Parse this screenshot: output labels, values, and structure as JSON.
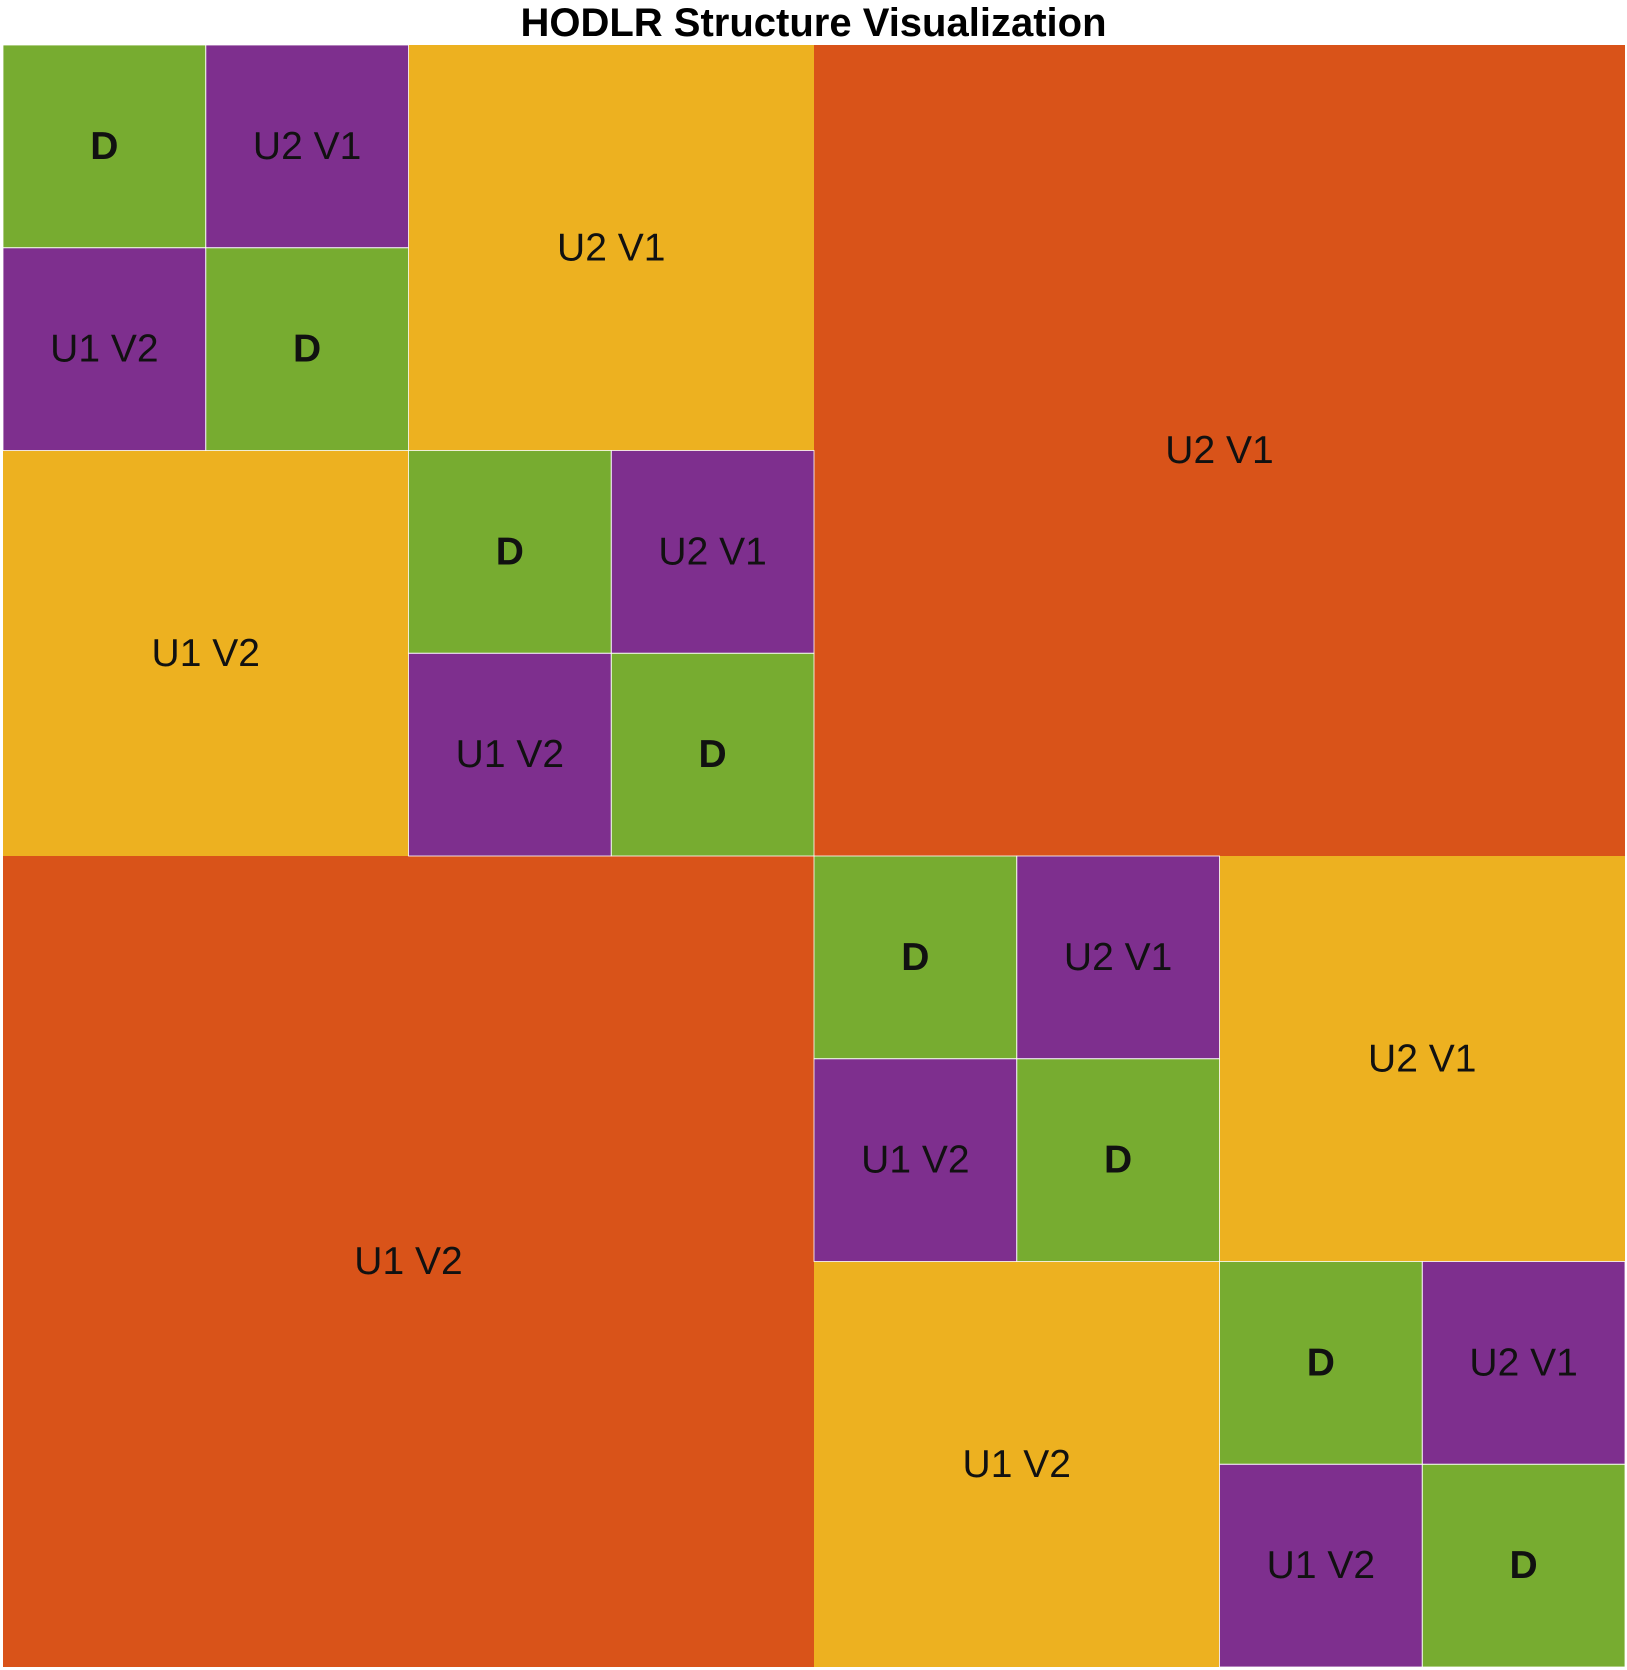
{
  "title": "HODLR Structure Visualization",
  "colors": {
    "dense": "#77AC30",
    "level3": "#7E2F8E",
    "level2": "#EDB120",
    "level1": "#D95319"
  },
  "matrix": {
    "size": 16,
    "levels": 3
  },
  "blocks": [
    {
      "id": "L1-upper",
      "row": 0,
      "col": 8,
      "rows": 8,
      "cols": 8,
      "kind": "level1",
      "label": "U2 V1"
    },
    {
      "id": "L1-lower",
      "row": 8,
      "col": 0,
      "rows": 8,
      "cols": 8,
      "kind": "level1",
      "label": "U1 V2"
    },
    {
      "id": "L2-a-upper",
      "row": 0,
      "col": 4,
      "rows": 4,
      "cols": 4,
      "kind": "level2",
      "label": "U2 V1"
    },
    {
      "id": "L2-a-lower",
      "row": 4,
      "col": 0,
      "rows": 4,
      "cols": 4,
      "kind": "level2",
      "label": "U1 V2"
    },
    {
      "id": "L2-b-upper",
      "row": 8,
      "col": 12,
      "rows": 4,
      "cols": 4,
      "kind": "level2",
      "label": "U2 V1"
    },
    {
      "id": "L2-b-lower",
      "row": 12,
      "col": 8,
      "rows": 4,
      "cols": 4,
      "kind": "level2",
      "label": "U1 V2"
    },
    {
      "id": "L3-1-dense-a",
      "row": 0,
      "col": 0,
      "rows": 2,
      "cols": 2,
      "kind": "dense",
      "label": "D"
    },
    {
      "id": "L3-1-upper",
      "row": 0,
      "col": 2,
      "rows": 2,
      "cols": 2,
      "kind": "level3",
      "label": "U2 V1"
    },
    {
      "id": "L3-1-lower",
      "row": 2,
      "col": 0,
      "rows": 2,
      "cols": 2,
      "kind": "level3",
      "label": "U1 V2"
    },
    {
      "id": "L3-1-dense-b",
      "row": 2,
      "col": 2,
      "rows": 2,
      "cols": 2,
      "kind": "dense",
      "label": "D"
    },
    {
      "id": "L3-2-dense-a",
      "row": 4,
      "col": 4,
      "rows": 2,
      "cols": 2,
      "kind": "dense",
      "label": "D"
    },
    {
      "id": "L3-2-upper",
      "row": 4,
      "col": 6,
      "rows": 2,
      "cols": 2,
      "kind": "level3",
      "label": "U2 V1"
    },
    {
      "id": "L3-2-lower",
      "row": 6,
      "col": 4,
      "rows": 2,
      "cols": 2,
      "kind": "level3",
      "label": "U1 V2"
    },
    {
      "id": "L3-2-dense-b",
      "row": 6,
      "col": 6,
      "rows": 2,
      "cols": 2,
      "kind": "dense",
      "label": "D"
    },
    {
      "id": "L3-3-dense-a",
      "row": 8,
      "col": 8,
      "rows": 2,
      "cols": 2,
      "kind": "dense",
      "label": "D"
    },
    {
      "id": "L3-3-upper",
      "row": 8,
      "col": 10,
      "rows": 2,
      "cols": 2,
      "kind": "level3",
      "label": "U2 V1"
    },
    {
      "id": "L3-3-lower",
      "row": 10,
      "col": 8,
      "rows": 2,
      "cols": 2,
      "kind": "level3",
      "label": "U1 V2"
    },
    {
      "id": "L3-3-dense-b",
      "row": 10,
      "col": 10,
      "rows": 2,
      "cols": 2,
      "kind": "dense",
      "label": "D"
    },
    {
      "id": "L3-4-dense-a",
      "row": 12,
      "col": 12,
      "rows": 2,
      "cols": 2,
      "kind": "dense",
      "label": "D"
    },
    {
      "id": "L3-4-upper",
      "row": 12,
      "col": 14,
      "rows": 2,
      "cols": 2,
      "kind": "level3",
      "label": "U2 V1"
    },
    {
      "id": "L3-4-lower",
      "row": 14,
      "col": 12,
      "rows": 2,
      "cols": 2,
      "kind": "level3",
      "label": "U1 V2"
    },
    {
      "id": "L3-4-dense-b",
      "row": 14,
      "col": 14,
      "rows": 2,
      "cols": 2,
      "kind": "dense",
      "label": "D"
    }
  ]
}
